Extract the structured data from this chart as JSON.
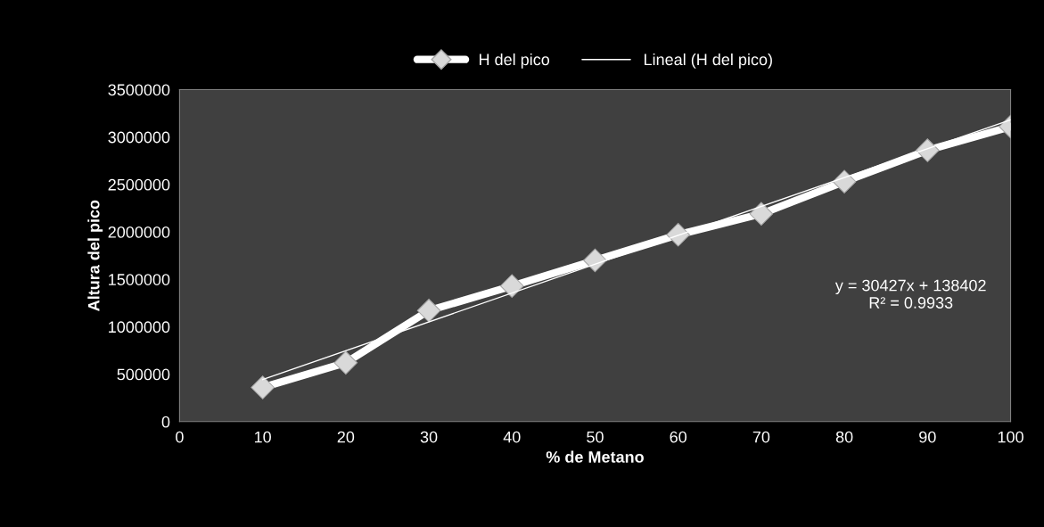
{
  "chart_data": {
    "type": "line",
    "xlabel": "% de Metano",
    "ylabel": "Altura del pico",
    "x": [
      10,
      20,
      30,
      40,
      50,
      60,
      70,
      80,
      90,
      100
    ],
    "series": [
      {
        "name": "H del pico",
        "color": "#ffffff",
        "values": [
          360000,
          620000,
          1170000,
          1430000,
          1700000,
          1970000,
          2190000,
          2530000,
          2860000,
          3110000
        ],
        "marker": "diamond"
      },
      {
        "name": "Lineal (H del pico)",
        "type": "line",
        "color": "#ffffff",
        "x": [
          10,
          100
        ],
        "values": [
          442672,
          3181102
        ],
        "marker": "none"
      }
    ],
    "xlim": [
      0,
      100
    ],
    "xticks": [
      0,
      10,
      20,
      30,
      40,
      50,
      60,
      70,
      80,
      90,
      100
    ],
    "ylim": [
      0,
      3500000
    ],
    "yticks": [
      0,
      500000,
      1000000,
      1500000,
      2000000,
      2500000,
      3000000,
      3500000
    ],
    "grid": false,
    "legend": "top",
    "annotations": [
      "y = 30427x + 138402\nR² = 0.9933"
    ]
  }
}
